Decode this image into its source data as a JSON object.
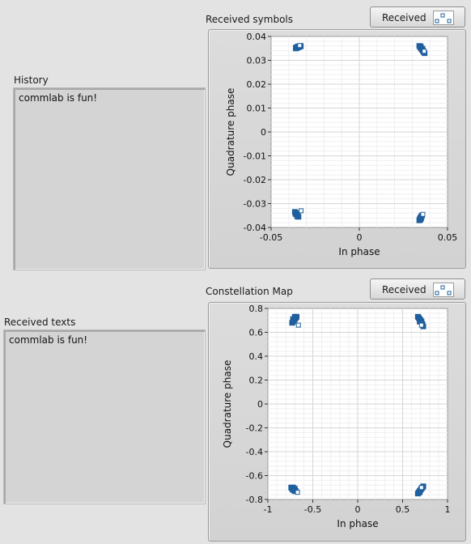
{
  "history": {
    "label": "History",
    "text": "commlab is fun!"
  },
  "received_texts": {
    "label": "Received texts",
    "text": "commlab is fun!"
  },
  "colors": {
    "marker": "#1f5f9e",
    "grid_major": "#d6d6d6",
    "grid_minor": "#efefef"
  },
  "chart_data": [
    {
      "type": "scatter",
      "title": "Received symbols",
      "legend": "Received",
      "xlabel": "In phase",
      "ylabel": "Quadrature phase",
      "xlim": [
        -0.05,
        0.05
      ],
      "ylim": [
        -0.04,
        0.04
      ],
      "xticks": [
        "-0.05",
        "0",
        "0.05"
      ],
      "yticks": [
        "0.04",
        "0.03",
        "0.02",
        "0.01",
        "0",
        "-0.01",
        "-0.02",
        "-0.03",
        "-0.04"
      ],
      "grid": true,
      "series": [
        {
          "x": [
            -0.036,
            -0.0355,
            -0.035,
            -0.0345,
            -0.034,
            -0.0335,
            -0.0332,
            -0.0358,
            -0.0348,
            -0.0338
          ],
          "y": [
            0.035,
            0.0352,
            0.0354,
            0.0355,
            0.0357,
            0.0358,
            0.036,
            0.0354,
            0.0358,
            0.0362
          ]
        },
        {
          "x": [
            0.034,
            0.0345,
            0.035,
            0.0355,
            0.036,
            0.0365,
            0.037,
            0.0348,
            0.0358,
            0.0368
          ],
          "y": [
            0.036,
            0.0355,
            0.035,
            0.0345,
            0.034,
            0.0335,
            0.033,
            0.0358,
            0.0348,
            0.0338
          ]
        },
        {
          "x": [
            -0.0365,
            -0.036,
            -0.0355,
            -0.035,
            -0.0345,
            -0.0362,
            -0.0352,
            -0.033
          ],
          "y": [
            -0.0335,
            -0.034,
            -0.0345,
            -0.035,
            -0.0355,
            -0.0343,
            -0.0353,
            -0.033
          ]
        },
        {
          "x": [
            0.034,
            0.0343,
            0.0346,
            0.0349,
            0.0352,
            0.0355,
            0.0345,
            0.035,
            0.036
          ],
          "y": [
            -0.037,
            -0.0365,
            -0.036,
            -0.0357,
            -0.0354,
            -0.035,
            -0.0368,
            -0.0362,
            -0.0345
          ]
        }
      ]
    },
    {
      "type": "scatter",
      "title": "Constellation Map",
      "legend": "Received",
      "xlabel": "In phase",
      "ylabel": "Quadrature phase",
      "xlim": [
        -1,
        1
      ],
      "ylim": [
        -0.8,
        0.8
      ],
      "xticks": [
        "-1",
        "-0.5",
        "0",
        "0.5",
        "1"
      ],
      "yticks": [
        "0.8",
        "0.6",
        "0.4",
        "0.2",
        "0",
        "-0.2",
        "-0.4",
        "-0.6",
        "-0.8"
      ],
      "grid": true,
      "series": [
        {
          "x": [
            -0.73,
            -0.72,
            -0.71,
            -0.7,
            -0.69,
            -0.68,
            -0.72,
            -0.7,
            -0.66
          ],
          "y": [
            0.68,
            0.69,
            0.7,
            0.71,
            0.72,
            0.73,
            0.71,
            0.73,
            0.66
          ]
        },
        {
          "x": [
            0.67,
            0.68,
            0.69,
            0.7,
            0.71,
            0.72,
            0.73,
            0.69,
            0.71
          ],
          "y": [
            0.73,
            0.72,
            0.71,
            0.7,
            0.69,
            0.67,
            0.65,
            0.69,
            0.66
          ]
        },
        {
          "x": [
            -0.74,
            -0.73,
            -0.72,
            -0.71,
            -0.7,
            -0.69,
            -0.72,
            -0.7,
            -0.67
          ],
          "y": [
            -0.7,
            -0.71,
            -0.72,
            -0.72,
            -0.73,
            -0.73,
            -0.7,
            -0.71,
            -0.74
          ]
        },
        {
          "x": [
            0.67,
            0.68,
            0.69,
            0.7,
            0.71,
            0.72,
            0.73,
            0.69,
            0.71
          ],
          "y": [
            -0.75,
            -0.74,
            -0.73,
            -0.72,
            -0.71,
            -0.7,
            -0.69,
            -0.74,
            -0.7
          ]
        }
      ]
    }
  ]
}
